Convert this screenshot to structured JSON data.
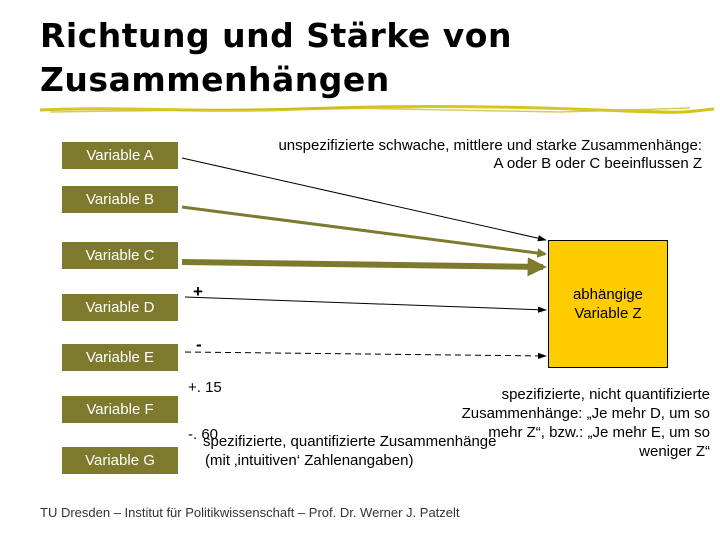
{
  "slide": {
    "title_line1": "Richtung und Stärke von",
    "title_line2": "Zusammenhängen",
    "variables": [
      "Variable A",
      "Variable B",
      "Variable C",
      "Variable D",
      "Variable E",
      "Variable F",
      "Variable G"
    ],
    "dependent": [
      "abhängige",
      "Variable Z"
    ],
    "unspecified_note_line1": "unspezifizierte schwache, mittlere und starke Zusammenhänge:",
    "unspecified_note_line2": "A oder B oder C beeinflussen Z",
    "sign_plus": "+",
    "sign_minus": "-",
    "coef_f": "+. 15",
    "coef_g": "-. 60",
    "nonquant_note": [
      "spezifizierte, nicht quantifizierte",
      "Zusammenhänge: „Je mehr D, um so",
      "mehr Z“, bzw.: „Je mehr E, um so",
      "weniger Z“"
    ],
    "quant_note_line1": "spezifizierte, quantifizierte Zusammenhänge",
    "quant_note_line2": "(mit ‚intuitiven‘ Zahlenangaben)",
    "footer": "TU Dresden – Institut für Politikwissenschaft – Prof. Dr. Werner J. Patzelt",
    "colors": {
      "box": "#7d7a2e",
      "arrow_thick": "#7d7a2e",
      "z_box": "#ffcc00",
      "rule": "#d4c21f"
    }
  }
}
